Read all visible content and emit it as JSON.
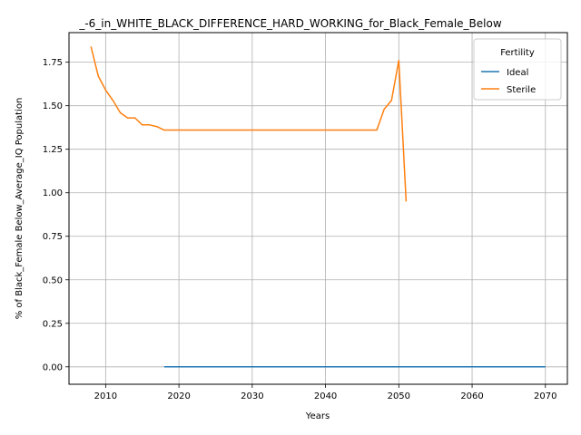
{
  "chart_data": {
    "type": "line",
    "title": "_-6_in_WHITE_BLACK_DIFFERENCE_HARD_WORKING_for_Black_Female_Below",
    "xlabel": "Years",
    "ylabel": "% of Black_Female Below_Average_IQ Population",
    "xlim": [
      2005,
      2073
    ],
    "ylim": [
      -0.1,
      1.92
    ],
    "xticks": [
      2010,
      2020,
      2030,
      2040,
      2050,
      2060,
      2070
    ],
    "yticks": [
      0.0,
      0.25,
      0.5,
      0.75,
      1.0,
      1.25,
      1.5,
      1.75
    ],
    "xtick_labels": [
      "2010",
      "2020",
      "2030",
      "2040",
      "2050",
      "2060",
      "2070"
    ],
    "ytick_labels": [
      "0.00",
      "0.25",
      "0.50",
      "0.75",
      "1.00",
      "1.25",
      "1.50",
      "1.75"
    ],
    "grid": true,
    "legend": {
      "title": "Fertility",
      "placement": "top-right"
    },
    "series": [
      {
        "name": "Ideal",
        "color": "#1f77b4",
        "x": [
          2018,
          2070
        ],
        "y": [
          0.0,
          0.0
        ]
      },
      {
        "name": "Sterile",
        "color": "#ff7f0e",
        "x": [
          2008,
          2009,
          2010,
          2011,
          2012,
          2013,
          2014,
          2015,
          2016,
          2017,
          2018,
          2019,
          2020,
          2025,
          2030,
          2035,
          2040,
          2045,
          2047,
          2048,
          2049,
          2050,
          2051
        ],
        "y": [
          1.84,
          1.67,
          1.59,
          1.53,
          1.46,
          1.43,
          1.43,
          1.39,
          1.39,
          1.38,
          1.36,
          1.36,
          1.36,
          1.36,
          1.36,
          1.36,
          1.36,
          1.36,
          1.36,
          1.48,
          1.53,
          1.76,
          0.95
        ]
      }
    ]
  }
}
